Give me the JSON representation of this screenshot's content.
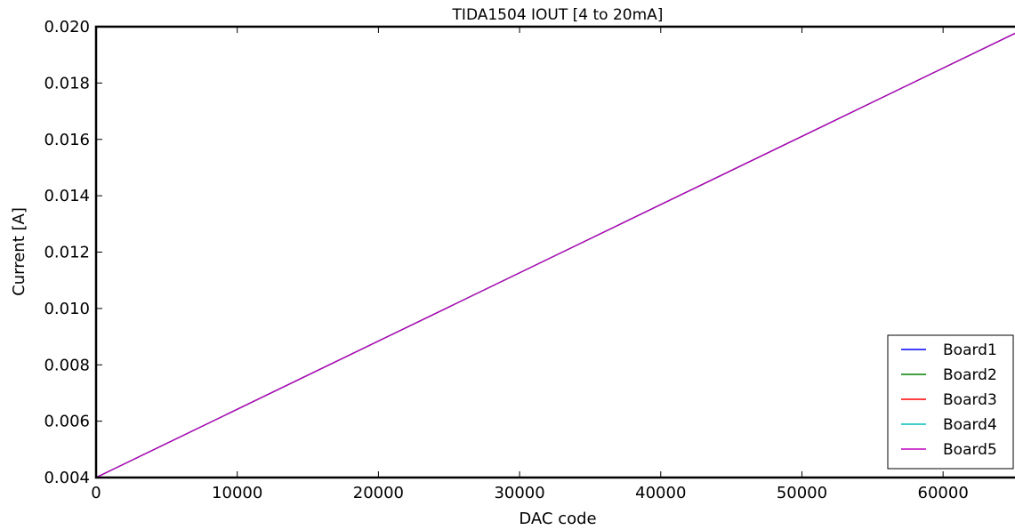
{
  "chart_data": {
    "type": "line",
    "title": "TIDA1504 IOUT [4 to 20mA]",
    "xlabel": "DAC code",
    "ylabel": "Current [A]",
    "xlim": [
      0,
      65535
    ],
    "ylim": [
      0.004,
      0.02
    ],
    "x_ticks": [
      0,
      10000,
      20000,
      30000,
      40000,
      50000,
      60000
    ],
    "x_tick_labels": [
      "0",
      "10000",
      "20000",
      "30000",
      "40000",
      "50000",
      "60000"
    ],
    "y_ticks": [
      0.004,
      0.006,
      0.008,
      0.01,
      0.012,
      0.014,
      0.016,
      0.018,
      0.02
    ],
    "y_tick_labels": [
      "0.004",
      "0.006",
      "0.008",
      "0.010",
      "0.012",
      "0.014",
      "0.016",
      "0.018",
      "0.020"
    ],
    "grid": false,
    "legend_position": "lower-right",
    "x": [
      0,
      65535
    ],
    "series": [
      {
        "name": "Board1",
        "color": "#0000ff",
        "values": [
          0.004,
          0.01987
        ]
      },
      {
        "name": "Board2",
        "color": "#008000",
        "values": [
          0.004,
          0.01987
        ]
      },
      {
        "name": "Board3",
        "color": "#ff0000",
        "values": [
          0.004,
          0.01987
        ]
      },
      {
        "name": "Board4",
        "color": "#00bfbf",
        "values": [
          0.004,
          0.01987
        ]
      },
      {
        "name": "Board5",
        "color": "#bf00bf",
        "values": [
          0.004,
          0.01987
        ]
      }
    ]
  }
}
